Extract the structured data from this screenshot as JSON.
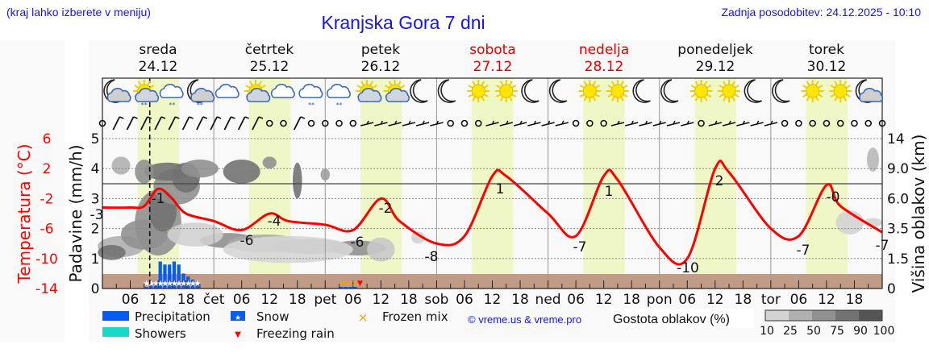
{
  "header": {
    "hint": "(kraj lahko izberete v meniju)",
    "title": "Kranjska Gora 7 dni",
    "updated": "Zadnja posodobitev: 24.12.2025 - 10:10"
  },
  "days": [
    {
      "name": "sreda",
      "date": "24.12",
      "weekend": false
    },
    {
      "name": "četrtek",
      "date": "25.12",
      "weekend": false
    },
    {
      "name": "petek",
      "date": "26.12",
      "weekend": false
    },
    {
      "name": "sobota",
      "date": "27.12",
      "weekend": true
    },
    {
      "name": "nedelja",
      "date": "28.12",
      "weekend": true
    },
    {
      "name": "ponedeljek",
      "date": "29.12",
      "weekend": false
    },
    {
      "name": "torek",
      "date": "30.12",
      "weekend": false
    }
  ],
  "icons_row": [
    "moon-cloud",
    "sun-cloud-snow",
    "cloud-snow",
    "moon-cloud-snow",
    "cloud",
    "sun-cloud",
    "cloud",
    "cloud-snow",
    "cloud-snow",
    "sun-cloud",
    "sun-cloud",
    "moon",
    "moon",
    "sun",
    "sun",
    "moon",
    "moon",
    "sun",
    "sun",
    "moon",
    "moon",
    "sun",
    "sun",
    "moon",
    "moon",
    "sun",
    "sun",
    "moon-cloud"
  ],
  "axes": {
    "left_temp_label": "Temperatura (°C)",
    "left_precip_label": "Padavine (mm/h)",
    "right_label": "Višina oblakov (km)",
    "temp_ticks": [
      "6",
      "2",
      "-2",
      "-6",
      "-10",
      "-14"
    ],
    "precip_ticks": [
      "5",
      "4",
      "3",
      "2",
      "1",
      "0"
    ],
    "cloud_height_ticks": [
      "14",
      "9.0",
      "6.0",
      "3.5",
      "1.5",
      "0"
    ],
    "x_ticks": [
      "06",
      "12",
      "18",
      "čet",
      "06",
      "12",
      "18",
      "pet",
      "06",
      "12",
      "18",
      "sob",
      "06",
      "12",
      "18",
      "ned",
      "06",
      "12",
      "18",
      "pon",
      "06",
      "12",
      "18",
      "tor",
      "06",
      "12",
      "18"
    ]
  },
  "legend": {
    "precipitation": "Precipitation",
    "showers": "Showers",
    "snow": "Snow",
    "freezing_rain": "Freezing rain",
    "frozen_mix": "Frozen mix",
    "credit": "© vreme.us & vreme.pro",
    "cloud_density_label": "Gostota oblakov (%)",
    "cloud_density_ticks": [
      "10",
      "25",
      "50",
      "75",
      "90",
      "100"
    ],
    "cloud_density_colors": [
      "#d3d3d3",
      "#b0b0b0",
      "#909090",
      "#727272",
      "#555555"
    ]
  },
  "colors": {
    "title_blue": "#1515e6",
    "temp_red": "#ff0000",
    "precip_blue": "#0a5cf0",
    "showers_cyan": "#18d8c8",
    "frozen_mix_orange": "#f5a300",
    "daylight": "#eff7c6",
    "ground": "#c09c86"
  },
  "chart_data": {
    "type": "line",
    "title": "Kranjska Gora 7 dni",
    "x_range": [
      "2025-12-24 00:00",
      "2025-12-31 00:00"
    ],
    "xlabel": "",
    "ylabel": "Temperatura (°C)",
    "ylim_temp": [
      -14,
      6
    ],
    "ylim_precip": [
      0,
      5
    ],
    "grid": true,
    "current_time_marker": "2025-12-24 10:10",
    "temperature_series": {
      "name": "Temperatura (°C)",
      "hours": [
        0,
        6,
        9,
        12,
        15,
        18,
        24,
        30,
        36,
        40,
        48,
        54,
        60,
        64,
        72,
        78,
        84,
        87,
        96,
        102,
        108,
        111,
        120,
        126,
        132,
        135,
        144,
        150,
        156,
        159,
        168
      ],
      "values": [
        -3.2,
        -3.2,
        -3.0,
        -0.7,
        -2.0,
        -4.0,
        -5.0,
        -6.2,
        -4.0,
        -5.0,
        -5.5,
        -6.2,
        -2.0,
        -5.0,
        -8.0,
        -7.0,
        1.0,
        1.0,
        -4.0,
        -7.0,
        1.0,
        0.5,
        -8.5,
        -10.0,
        2.0,
        1.5,
        -6.0,
        -7.0,
        -0.2,
        -3.0,
        -6.5
      ]
    },
    "temperature_labels": [
      {
        "hour": 0,
        "value": "-3"
      },
      {
        "hour": 12,
        "value": "-1"
      },
      {
        "hour": 30,
        "value": "-6"
      },
      {
        "hour": 36,
        "value": "-4"
      },
      {
        "hour": 54,
        "value": "-6"
      },
      {
        "hour": 60,
        "value": "-2"
      },
      {
        "hour": 70,
        "value": "-8"
      },
      {
        "hour": 84,
        "value": "1"
      },
      {
        "hour": 102,
        "value": "-7"
      },
      {
        "hour": 108,
        "value": "1"
      },
      {
        "hour": 125,
        "value": "-10"
      },
      {
        "hour": 132,
        "value": "2"
      },
      {
        "hour": 150,
        "value": "-7"
      },
      {
        "hour": 156,
        "value": "-0"
      },
      {
        "hour": 167,
        "value": "-7"
      }
    ],
    "precipitation_series": {
      "name": "Precipitation (snow)",
      "hours": [
        9,
        10,
        11,
        12,
        13,
        14,
        15,
        16,
        17,
        18,
        19,
        20
      ],
      "values": [
        0.05,
        0.1,
        0.2,
        0.9,
        0.8,
        0.8,
        0.9,
        0.8,
        0.5,
        0.4,
        0.3,
        0.2
      ]
    },
    "frozen_mix_hours": [
      51,
      52,
      53,
      54
    ],
    "freezing_rain_hours": [
      55
    ]
  }
}
